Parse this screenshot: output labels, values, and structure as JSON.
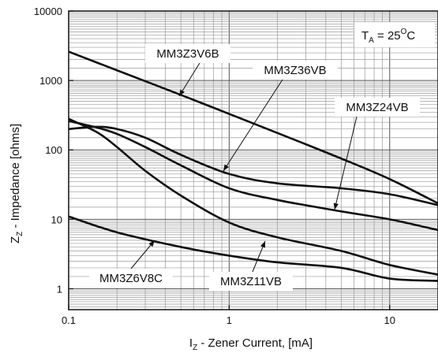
{
  "chart_data": {
    "type": "line",
    "title": "",
    "xlabel": "I_Z - Zener Current, [mA]",
    "ylabel": "Z_Z - Impedance [ohms]",
    "x_scale": "log",
    "y_scale": "log",
    "xlim": [
      0.1,
      20
    ],
    "ylim": [
      0.5,
      10000
    ],
    "x_ticks": [
      0.1,
      1,
      10
    ],
    "x_tick_labels": [
      "0.1",
      "1",
      "10"
    ],
    "y_ticks": [
      1,
      10,
      100,
      1000,
      10000
    ],
    "y_tick_labels": [
      "1",
      "10",
      "100",
      "1000",
      "10000"
    ],
    "grid": true,
    "condition": {
      "symbol": "T",
      "subscript": "A",
      "value": " = 25",
      "superscript": "O",
      "unit": "C"
    },
    "series": [
      {
        "name": "MM3Z3V6B",
        "x": [
          0.1,
          0.2,
          0.5,
          1,
          2,
          5,
          10,
          20
        ],
        "y": [
          2600,
          1400,
          620,
          330,
          175,
          75,
          38,
          17
        ]
      },
      {
        "name": "MM3Z36VB",
        "x": [
          0.1,
          0.15,
          0.2,
          0.3,
          0.5,
          1,
          2,
          5,
          10,
          20
        ],
        "y": [
          200,
          215,
          200,
          150,
          85,
          45,
          33,
          28,
          23,
          16
        ]
      },
      {
        "name": "MM3Z24VB",
        "x": [
          0.1,
          0.15,
          0.2,
          0.3,
          0.5,
          1,
          2,
          5,
          10,
          20
        ],
        "y": [
          260,
          210,
          170,
          110,
          60,
          28,
          19,
          13,
          10,
          7
        ]
      },
      {
        "name": "MM3Z11VB",
        "x": [
          0.1,
          0.15,
          0.2,
          0.3,
          0.5,
          1,
          2,
          5,
          10,
          20
        ],
        "y": [
          280,
          180,
          110,
          50,
          22,
          9,
          5.5,
          3.5,
          2.2,
          1.6
        ]
      },
      {
        "name": "MM3Z6V8C",
        "x": [
          0.1,
          0.2,
          0.5,
          1,
          2,
          5,
          10,
          20
        ],
        "y": [
          11,
          6.5,
          4,
          3,
          2.4,
          2,
          1.4,
          1.3
        ]
      }
    ],
    "labels": [
      {
        "text": "MM3Z3V6B",
        "series": "MM3Z3V6B"
      },
      {
        "text": "MM3Z36VB",
        "series": "MM3Z36VB"
      },
      {
        "text": "MM3Z24VB",
        "series": "MM3Z24VB"
      },
      {
        "text": "MM3Z11VB",
        "series": "MM3Z11VB"
      },
      {
        "text": "MM3Z6V8C",
        "series": "MM3Z6V8C"
      }
    ]
  }
}
